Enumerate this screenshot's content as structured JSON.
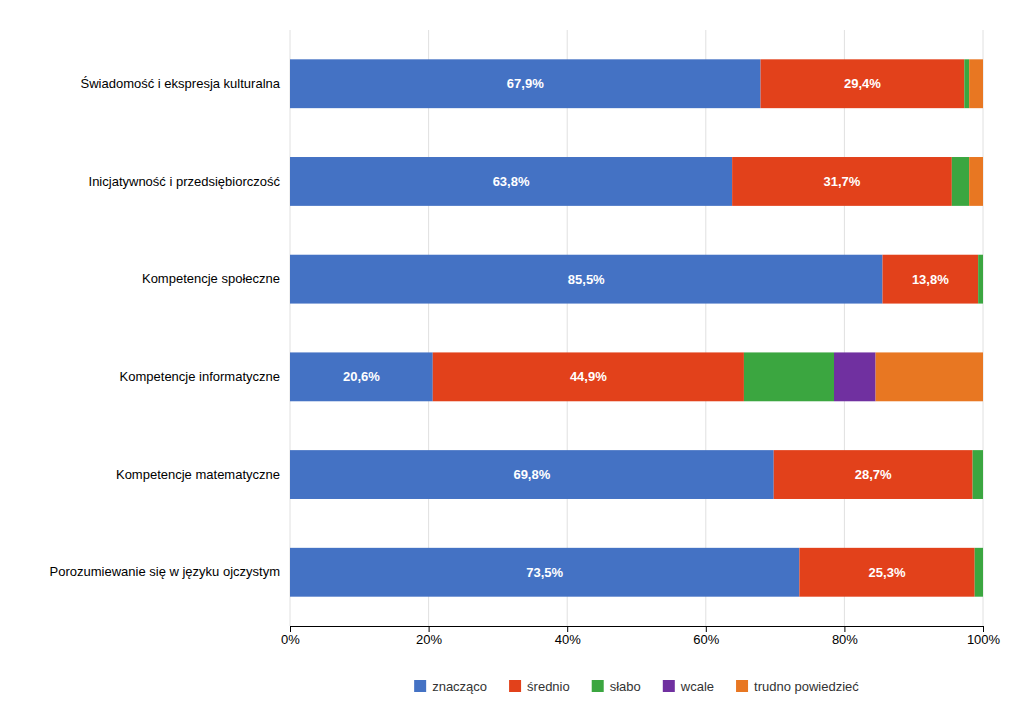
{
  "chart_data": {
    "type": "bar",
    "orientation": "horizontal",
    "stacked": true,
    "categories": [
      "Porozumiewanie się w języku ojczystym",
      "Kompetencje matematyczne",
      "Kompetencje informatyczne",
      "Kompetencje społeczne",
      "Inicjatywność i przedsiębiorczość",
      "Świadomość i ekspresja kulturalna"
    ],
    "series": [
      {
        "name": "znacząco",
        "color": "#4472C4",
        "values": [
          73.5,
          69.8,
          20.6,
          85.5,
          63.8,
          67.9
        ],
        "value_labels": [
          "73,5%",
          "69,8%",
          "20,6%",
          "85,5%",
          "63,8%",
          "67,9%"
        ]
      },
      {
        "name": "średnio",
        "color": "#E2411B",
        "values": [
          25.3,
          28.7,
          44.9,
          13.8,
          31.7,
          29.4
        ],
        "value_labels": [
          "25,3%",
          "28,7%",
          "44,9%",
          "13,8%",
          "31,7%",
          "29,4%"
        ]
      },
      {
        "name": "słabo",
        "color": "#3BA640",
        "values": [
          1.2,
          1.5,
          13.0,
          0.7,
          2.5,
          0.7
        ]
      },
      {
        "name": "wcale",
        "color": "#7030A0",
        "values": [
          0.0,
          0.0,
          6.0,
          0.0,
          0.0,
          0.0
        ]
      },
      {
        "name": "trudno powiedzieć",
        "color": "#E87722",
        "values": [
          0.0,
          0.0,
          15.5,
          0.0,
          2.0,
          2.0
        ]
      }
    ],
    "data_labels": true,
    "xlim": [
      0,
      100
    ],
    "xticks": [
      {
        "value": 0,
        "label": "0%"
      },
      {
        "value": 20,
        "label": "20%"
      },
      {
        "value": 40,
        "label": "40%"
      },
      {
        "value": 60,
        "label": "60%"
      },
      {
        "value": 80,
        "label": "80%"
      },
      {
        "value": 100,
        "label": "100%"
      }
    ],
    "grid": true,
    "legend": "bottom"
  }
}
